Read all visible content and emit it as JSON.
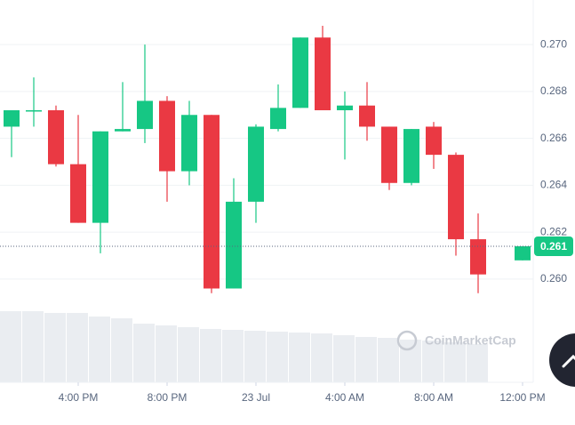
{
  "chart_data": {
    "type": "candlestick",
    "x": [
      1,
      2,
      3,
      4,
      5,
      6,
      7,
      8,
      9,
      10,
      11,
      12,
      13,
      14,
      15,
      16,
      17,
      18,
      19,
      20,
      21,
      22,
      24
    ],
    "open": [
      0.2665,
      0.2672,
      0.2672,
      0.2649,
      0.2624,
      0.2663,
      0.2664,
      0.2676,
      0.2646,
      0.267,
      0.2596,
      0.2633,
      0.2664,
      0.2673,
      0.2703,
      0.2672,
      0.2674,
      0.2665,
      0.2641,
      0.2665,
      0.2653,
      0.2617,
      0.2608
    ],
    "high": [
      0.2672,
      0.2686,
      0.2674,
      0.267,
      0.2663,
      0.2684,
      0.27,
      0.2678,
      0.2676,
      0.267,
      0.2643,
      0.2666,
      0.2683,
      0.2703,
      0.2708,
      0.268,
      0.2684,
      0.2665,
      0.2664,
      0.2667,
      0.2654,
      0.2628,
      0.2614
    ],
    "low": [
      0.2652,
      0.2665,
      0.2648,
      0.2624,
      0.2611,
      0.2663,
      0.2658,
      0.2633,
      0.264,
      0.2594,
      0.2596,
      0.2624,
      0.2663,
      0.2673,
      0.2672,
      0.2651,
      0.2659,
      0.2638,
      0.264,
      0.2647,
      0.261,
      0.2594,
      0.2608
    ],
    "close": [
      0.2672,
      0.2672,
      0.2649,
      0.2624,
      0.2663,
      0.2664,
      0.2676,
      0.2646,
      0.267,
      0.2596,
      0.2633,
      0.2665,
      0.2673,
      0.2703,
      0.2672,
      0.2674,
      0.2665,
      0.2641,
      0.2664,
      0.2653,
      0.2617,
      0.2602,
      0.2614
    ],
    "up_color": "#16c784",
    "down_color": "#ea3943",
    "xlim": [
      0.48,
      24.48
    ],
    "xticks": [
      {
        "value": 4,
        "label": "4:00 PM"
      },
      {
        "value": 8,
        "label": "8:00 PM"
      },
      {
        "value": 12,
        "label": "23 Jul"
      },
      {
        "value": 16,
        "label": "4:00 AM"
      },
      {
        "value": 20,
        "label": "8:00 AM"
      },
      {
        "value": 24,
        "label": "12:00 PM"
      }
    ],
    "ylim": [
      0.2556,
      0.2719
    ],
    "yticks": [
      {
        "value": 0.26,
        "label": "0.260"
      },
      0.262,
      0.264,
      0.266,
      0.268,
      {
        "value": 0.27,
        "label": "0.270"
      }
    ],
    "current_price": {
      "value": 0.2614,
      "label": "0.261"
    },
    "watermark": "CoinMarketCap",
    "grid": true
  }
}
